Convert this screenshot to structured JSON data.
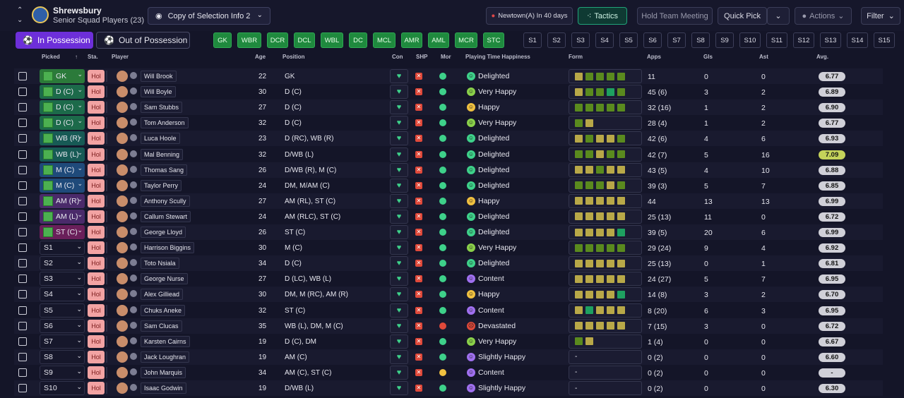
{
  "header": {
    "club": "Shrewsbury",
    "squad": "Senior Squad Players (23)",
    "view": "Copy of Selection Info 2",
    "next_match": "Newtown(A) In 40 days",
    "tactics": "Tactics",
    "hold_meeting": "Hold Team Meeting",
    "quick_pick": "Quick Pick",
    "actions": "Actions",
    "filter": "Filter"
  },
  "possession": {
    "in": "In Possession",
    "out": "Out of Possession"
  },
  "positions": [
    "GK",
    "WBR",
    "DCR",
    "DCL",
    "WBL",
    "DC",
    "MCL",
    "AMR",
    "AML",
    "MCR",
    "STC"
  ],
  "subs": [
    "S1",
    "S2",
    "S3",
    "S4",
    "S5",
    "S6",
    "S7",
    "S8",
    "S9",
    "S10",
    "S11",
    "S12",
    "S13",
    "S14",
    "S15"
  ],
  "columns": {
    "picked": "Picked",
    "sta": "Sta.",
    "player": "Player",
    "age": "Age",
    "position": "Position",
    "con": "Con",
    "shp": "SHP",
    "mor": "Mor",
    "pth": "Playing Time Happiness",
    "form": "Form",
    "apps": "Apps",
    "gls": "Gls",
    "ast": "Ast",
    "avg": "Avg."
  },
  "colors": {
    "accent": "#6d2fd9",
    "green_pill": "#1f8a3e",
    "tactics": "#21a37a",
    "morale_good": "#3ed18a",
    "morale_bad": "#e0493a",
    "morale_ok": "#f0c040"
  },
  "players": [
    {
      "picked": "GK",
      "pclass": "pgk",
      "sta": "Hol",
      "name": "Will Brook",
      "age": "22",
      "position": "GK",
      "mor": "good",
      "pth_icon": "d",
      "pth": "Delighted",
      "form": [
        "a",
        "g",
        "g",
        "g",
        "g"
      ],
      "apps": "11",
      "gls": "0",
      "ast": "0",
      "avg": "6.77"
    },
    {
      "picked": "D (C)",
      "pclass": "pd",
      "sta": "Hol",
      "name": "Will Boyle",
      "age": "30",
      "position": "D (C)",
      "mor": "good",
      "pth_icon": "v",
      "pth": "Very Happy",
      "form": [
        "a",
        "g",
        "g",
        "t",
        "g"
      ],
      "apps": "45 (6)",
      "gls": "3",
      "ast": "2",
      "avg": "6.89"
    },
    {
      "picked": "D (C)",
      "pclass": "pd",
      "sta": "Hol",
      "name": "Sam Stubbs",
      "age": "27",
      "position": "D (C)",
      "mor": "good",
      "pth_icon": "h",
      "pth": "Happy",
      "form": [
        "g",
        "g",
        "g",
        "g",
        "g"
      ],
      "apps": "32 (16)",
      "gls": "1",
      "ast": "2",
      "avg": "6.90"
    },
    {
      "picked": "D (C)",
      "pclass": "pd",
      "sta": "Hol",
      "name": "Tom Anderson",
      "age": "32",
      "position": "D (C)",
      "mor": "good",
      "pth_icon": "v",
      "pth": "Very Happy",
      "form": [
        "g",
        "a"
      ],
      "apps": "28 (4)",
      "gls": "1",
      "ast": "2",
      "avg": "6.77"
    },
    {
      "picked": "WB (R)",
      "pclass": "pwb",
      "sta": "Hol",
      "name": "Luca Hoole",
      "age": "23",
      "position": "D (RC), WB (R)",
      "mor": "good",
      "pth_icon": "d",
      "pth": "Delighted",
      "form": [
        "a",
        "g",
        "a",
        "a",
        "g"
      ],
      "apps": "42 (6)",
      "gls": "4",
      "ast": "6",
      "avg": "6.93"
    },
    {
      "picked": "WB (L)",
      "pclass": "pwb",
      "sta": "Hol",
      "name": "Mal Benning",
      "age": "32",
      "position": "D/WB (L)",
      "mor": "good",
      "pth_icon": "d",
      "pth": "Delighted",
      "form": [
        "g",
        "g",
        "a",
        "g",
        "g"
      ],
      "apps": "42 (7)",
      "gls": "5",
      "ast": "16",
      "avg": "7.09"
    },
    {
      "picked": "M (C)",
      "pclass": "pm",
      "sta": "Hol",
      "name": "Thomas Sang",
      "age": "26",
      "position": "D/WB (R), M (C)",
      "mor": "good",
      "pth_icon": "d",
      "pth": "Delighted",
      "form": [
        "a",
        "a",
        "g",
        "a",
        "a"
      ],
      "apps": "43 (5)",
      "gls": "4",
      "ast": "10",
      "avg": "6.88"
    },
    {
      "picked": "M (C)",
      "pclass": "pm",
      "sta": "Hol",
      "name": "Taylor Perry",
      "age": "24",
      "position": "DM, M/AM (C)",
      "mor": "good",
      "pth_icon": "d",
      "pth": "Delighted",
      "form": [
        "g",
        "g",
        "g",
        "a",
        "g"
      ],
      "apps": "39 (3)",
      "gls": "5",
      "ast": "7",
      "avg": "6.85"
    },
    {
      "picked": "AM (R)",
      "pclass": "pam",
      "sta": "Hol",
      "name": "Anthony Scully",
      "age": "27",
      "position": "AM (RL), ST (C)",
      "mor": "good",
      "pth_icon": "h",
      "pth": "Happy",
      "form": [
        "a",
        "a",
        "a",
        "a",
        "a"
      ],
      "apps": "44",
      "gls": "13",
      "ast": "13",
      "avg": "6.99"
    },
    {
      "picked": "AM (L)",
      "pclass": "pam",
      "sta": "Hol",
      "name": "Callum Stewart",
      "age": "24",
      "position": "AM (RLC), ST (C)",
      "mor": "good",
      "pth_icon": "d",
      "pth": "Delighted",
      "form": [
        "a",
        "a",
        "a",
        "a",
        "a"
      ],
      "apps": "25 (13)",
      "gls": "11",
      "ast": "0",
      "avg": "6.72"
    },
    {
      "picked": "ST (C)",
      "pclass": "pst",
      "sta": "Hol",
      "name": "George Lloyd",
      "age": "26",
      "position": "ST (C)",
      "mor": "good",
      "pth_icon": "d",
      "pth": "Delighted",
      "form": [
        "a",
        "a",
        "a",
        "a",
        "t"
      ],
      "apps": "39 (5)",
      "gls": "20",
      "ast": "6",
      "avg": "6.99"
    },
    {
      "picked": "S1",
      "pclass": "sub",
      "sta": "Hol",
      "name": "Harrison Biggins",
      "age": "30",
      "position": "M (C)",
      "mor": "good",
      "pth_icon": "v",
      "pth": "Very Happy",
      "form": [
        "g",
        "g",
        "g",
        "g",
        "g"
      ],
      "apps": "29 (24)",
      "gls": "9",
      "ast": "4",
      "avg": "6.92"
    },
    {
      "picked": "S2",
      "pclass": "sub",
      "sta": "Hol",
      "name": "Toto Nsiala",
      "age": "34",
      "position": "D (C)",
      "mor": "good",
      "pth_icon": "d",
      "pth": "Delighted",
      "form": [
        "a",
        "a",
        "a",
        "a",
        "a"
      ],
      "apps": "25 (13)",
      "gls": "0",
      "ast": "1",
      "avg": "6.81"
    },
    {
      "picked": "S3",
      "pclass": "sub",
      "sta": "Hol",
      "name": "George Nurse",
      "age": "27",
      "position": "D (LC), WB (L)",
      "mor": "good",
      "pth_icon": "c",
      "pth": "Content",
      "form": [
        "a",
        "a",
        "a",
        "a",
        "a"
      ],
      "apps": "24 (27)",
      "gls": "5",
      "ast": "7",
      "avg": "6.95"
    },
    {
      "picked": "S4",
      "pclass": "sub",
      "sta": "Hol",
      "name": "Alex Gilliead",
      "age": "30",
      "position": "DM, M (RC), AM (R)",
      "mor": "good",
      "pth_icon": "h",
      "pth": "Happy",
      "form": [
        "a",
        "a",
        "a",
        "a",
        "t"
      ],
      "apps": "14 (8)",
      "gls": "3",
      "ast": "2",
      "avg": "6.70"
    },
    {
      "picked": "S5",
      "pclass": "sub",
      "sta": "Hol",
      "name": "Chuks Aneke",
      "age": "32",
      "position": "ST (C)",
      "mor": "good",
      "pth_icon": "c",
      "pth": "Content",
      "form": [
        "a",
        "t",
        "a",
        "a",
        "a"
      ],
      "apps": "8 (20)",
      "gls": "6",
      "ast": "3",
      "avg": "6.95"
    },
    {
      "picked": "S6",
      "pclass": "sub",
      "sta": "Hol",
      "name": "Sam Clucas",
      "age": "35",
      "position": "WB (L), DM, M (C)",
      "mor": "bad",
      "pth_icon": "x",
      "pth": "Devastated",
      "form": [
        "a",
        "a",
        "a",
        "a",
        "a"
      ],
      "apps": "7 (15)",
      "gls": "3",
      "ast": "0",
      "avg": "6.72"
    },
    {
      "picked": "S7",
      "pclass": "sub",
      "sta": "Hol",
      "name": "Karsten Cairns",
      "age": "19",
      "position": "D (C), DM",
      "mor": "good",
      "pth_icon": "v",
      "pth": "Very Happy",
      "form": [
        "g",
        "a"
      ],
      "apps": "1 (4)",
      "gls": "0",
      "ast": "0",
      "avg": "6.67"
    },
    {
      "picked": "S8",
      "pclass": "sub",
      "sta": "Hol",
      "name": "Jack Loughran",
      "age": "19",
      "position": "AM (C)",
      "mor": "good",
      "pth_icon": "s",
      "pth": "Slightly Happy",
      "form": [],
      "form_text": "-",
      "apps": "0 (2)",
      "gls": "0",
      "ast": "0",
      "avg": "6.60"
    },
    {
      "picked": "S9",
      "pclass": "sub",
      "sta": "Hol",
      "name": "John Marquis",
      "age": "34",
      "position": "AM (C), ST (C)",
      "mor": "ok",
      "pth_icon": "c",
      "pth": "Content",
      "form": [],
      "form_text": "-",
      "apps": "0 (2)",
      "gls": "0",
      "ast": "0",
      "avg": "-"
    },
    {
      "picked": "S10",
      "pclass": "sub",
      "sta": "Hol",
      "name": "Isaac Godwin",
      "age": "19",
      "position": "D/WB (L)",
      "mor": "good",
      "pth_icon": "s",
      "pth": "Slightly Happy",
      "form": [],
      "form_text": "-",
      "apps": "0 (2)",
      "gls": "0",
      "ast": "0",
      "avg": "6.30"
    }
  ]
}
